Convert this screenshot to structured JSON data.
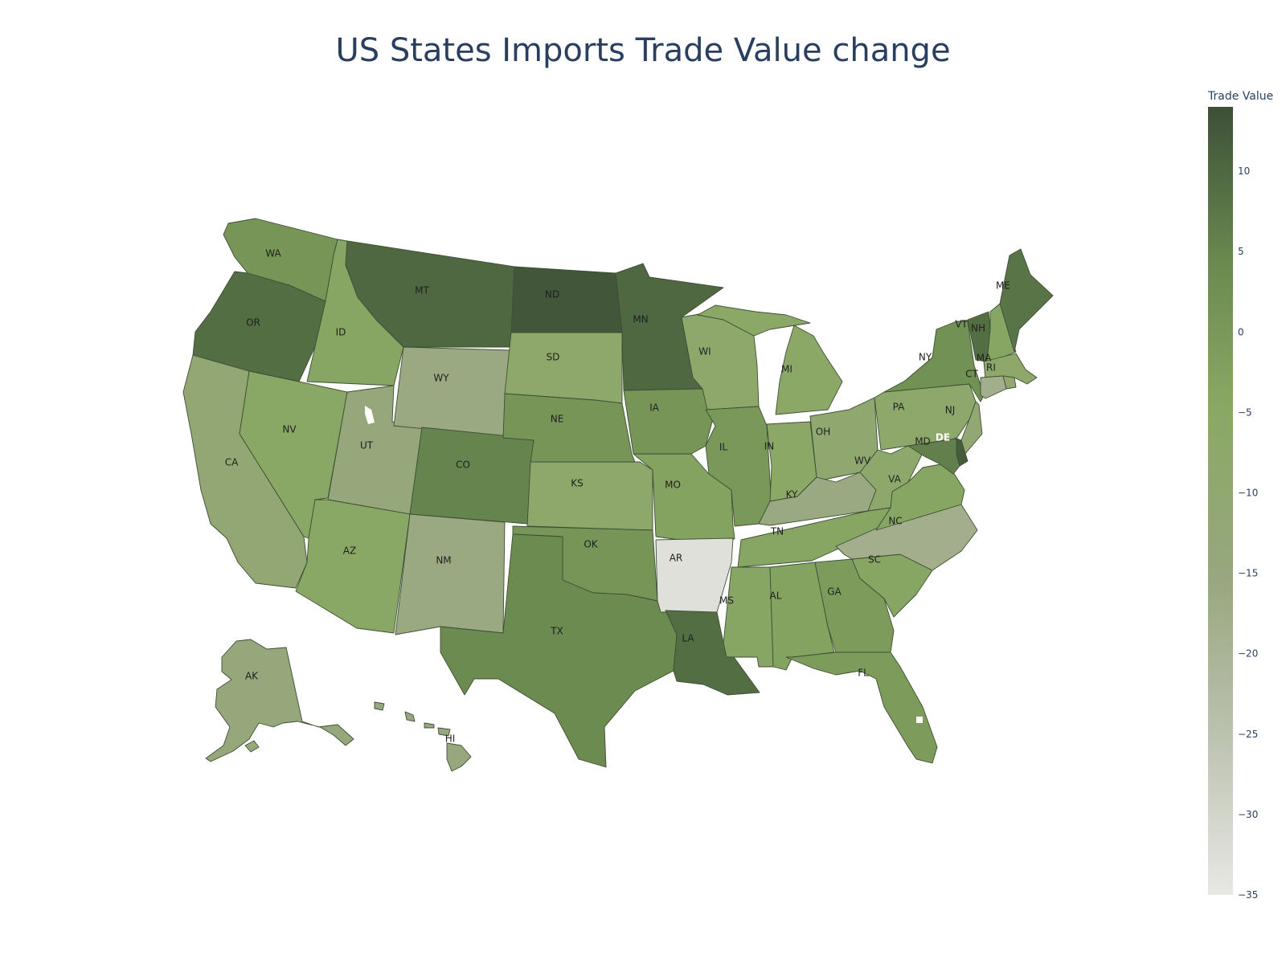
{
  "title": "US States Imports Trade Value change",
  "colorbar": {
    "title": "Trade Value",
    "min": -35,
    "max": 14,
    "ticks": [
      10,
      5,
      0,
      -5,
      -10,
      -15,
      -20,
      -25,
      -30,
      -35
    ],
    "tick_labels": [
      "10",
      "5",
      "0",
      "−5",
      "−10",
      "−15",
      "−20",
      "−25",
      "−30",
      "−35"
    ],
    "colorscale": [
      "#e8e8e4",
      "#bcc2b0",
      "#98a77f",
      "#8aa864",
      "#6a8a50",
      "#3d5038"
    ]
  },
  "chart_data": {
    "type": "choropleth",
    "title": "US States Imports Trade Value change",
    "colorbar_title": "Trade Value",
    "range": [
      -35,
      14
    ],
    "states": [
      {
        "code": "WA",
        "value": 1
      },
      {
        "code": "OR",
        "value": 9
      },
      {
        "code": "CA",
        "value": -11
      },
      {
        "code": "ID",
        "value": -4
      },
      {
        "code": "NV",
        "value": -5
      },
      {
        "code": "UT",
        "value": -14
      },
      {
        "code": "AZ",
        "value": -5
      },
      {
        "code": "MT",
        "value": 10
      },
      {
        "code": "WY",
        "value": -16
      },
      {
        "code": "CO",
        "value": 5
      },
      {
        "code": "NM",
        "value": -16
      },
      {
        "code": "ND",
        "value": 13
      },
      {
        "code": "SD",
        "value": -8
      },
      {
        "code": "NE",
        "value": 1
      },
      {
        "code": "KS",
        "value": -8
      },
      {
        "code": "OK",
        "value": 1
      },
      {
        "code": "TX",
        "value": 4
      },
      {
        "code": "MN",
        "value": 10
      },
      {
        "code": "IA",
        "value": 1
      },
      {
        "code": "MO",
        "value": -3
      },
      {
        "code": "AR",
        "value": -33
      },
      {
        "code": "LA",
        "value": 9
      },
      {
        "code": "WI",
        "value": -7
      },
      {
        "code": "IL",
        "value": 0
      },
      {
        "code": "MI",
        "value": -6
      },
      {
        "code": "IN",
        "value": -6
      },
      {
        "code": "OH",
        "value": -9
      },
      {
        "code": "KY",
        "value": -16
      },
      {
        "code": "TN",
        "value": -4
      },
      {
        "code": "MS",
        "value": -4
      },
      {
        "code": "AL",
        "value": -3
      },
      {
        "code": "GA",
        "value": -1
      },
      {
        "code": "FL",
        "value": -1
      },
      {
        "code": "SC",
        "value": -4
      },
      {
        "code": "NC",
        "value": -18
      },
      {
        "code": "VA",
        "value": -4
      },
      {
        "code": "WV",
        "value": -8
      },
      {
        "code": "PA",
        "value": -8
      },
      {
        "code": "NY",
        "value": 2
      },
      {
        "code": "VT",
        "value": 9
      },
      {
        "code": "NH",
        "value": -4
      },
      {
        "code": "ME",
        "value": 8
      },
      {
        "code": "MA",
        "value": -7
      },
      {
        "code": "RI",
        "value": -10
      },
      {
        "code": "CT",
        "value": -18
      },
      {
        "code": "NJ",
        "value": -11
      },
      {
        "code": "DE",
        "value": 12
      },
      {
        "code": "MD",
        "value": 6
      },
      {
        "code": "AK",
        "value": -14
      },
      {
        "code": "HI",
        "value": -15
      }
    ]
  }
}
